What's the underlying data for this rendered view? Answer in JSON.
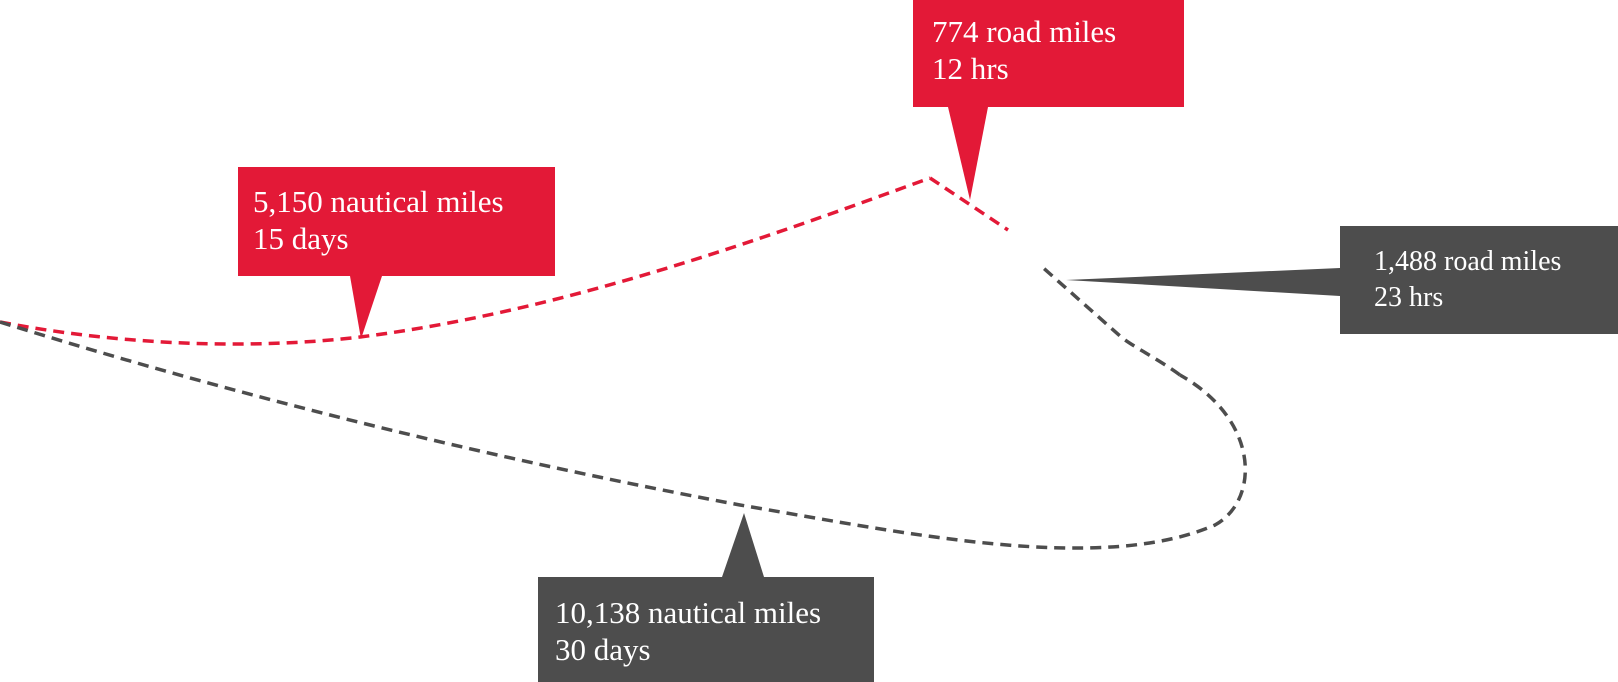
{
  "colors": {
    "red_route": "#e31937",
    "gray_route": "#4d4d4d",
    "label_text": "#ffffff",
    "background": "#ffffff"
  },
  "callouts": {
    "sea_red": {
      "distance": "5,150 nautical miles",
      "duration": "15 days"
    },
    "road_red": {
      "distance": "774 road miles",
      "duration": "12 hrs"
    },
    "road_gray": {
      "distance": "1,488 road miles",
      "duration": "23 hrs"
    },
    "sea_gray": {
      "distance": "10,138 nautical miles",
      "duration": "30 days"
    }
  }
}
